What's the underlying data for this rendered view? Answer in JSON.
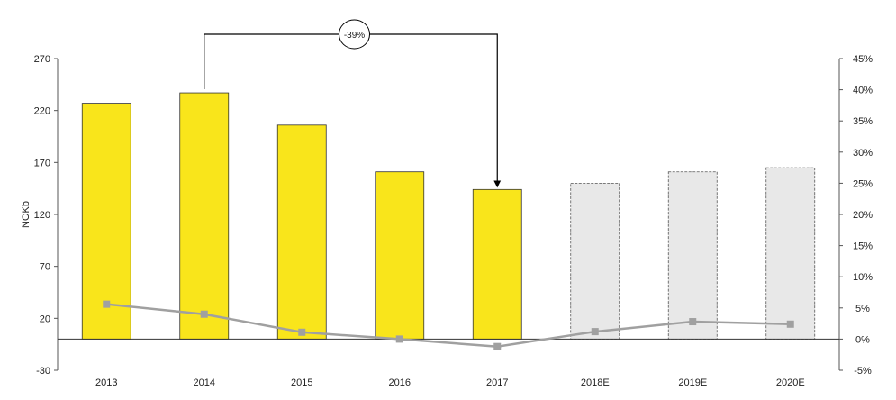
{
  "chart_data": {
    "type": "bar",
    "categories": [
      "2013",
      "2014",
      "2015",
      "2016",
      "2017",
      "2018E",
      "2019E",
      "2020E"
    ],
    "series": [
      {
        "type": "bar",
        "axis": "left",
        "values": [
          227,
          237,
          206,
          161,
          144,
          150,
          161,
          165
        ],
        "colors": [
          "#f9e51b",
          "#f9e51b",
          "#f9e51b",
          "#f9e51b",
          "#f9e51b",
          "#e8e8e8",
          "#e8e8e8",
          "#e8e8e8"
        ],
        "estimate": [
          false,
          false,
          false,
          false,
          false,
          true,
          true,
          true
        ]
      },
      {
        "type": "line",
        "axis": "right",
        "values": [
          5.6,
          4.0,
          1.1,
          0.0,
          -1.2,
          1.2,
          2.8,
          2.4
        ],
        "color": "#a0a0a0"
      }
    ],
    "ylabel": "NOKb",
    "ylim": [
      -30,
      270
    ],
    "yticks": [
      "270",
      "220",
      "170",
      "120",
      "70",
      "20",
      "-30"
    ],
    "y2lim": [
      -5,
      45
    ],
    "y2ticks": [
      "45%",
      "40%",
      "35%",
      "30%",
      "25%",
      "20%",
      "15%",
      "10%",
      "5%",
      "0%",
      "-5%"
    ],
    "annotation": {
      "label": "-39%",
      "from_category": "2014",
      "to_category": "2017"
    },
    "grid": false,
    "legend": "none"
  }
}
